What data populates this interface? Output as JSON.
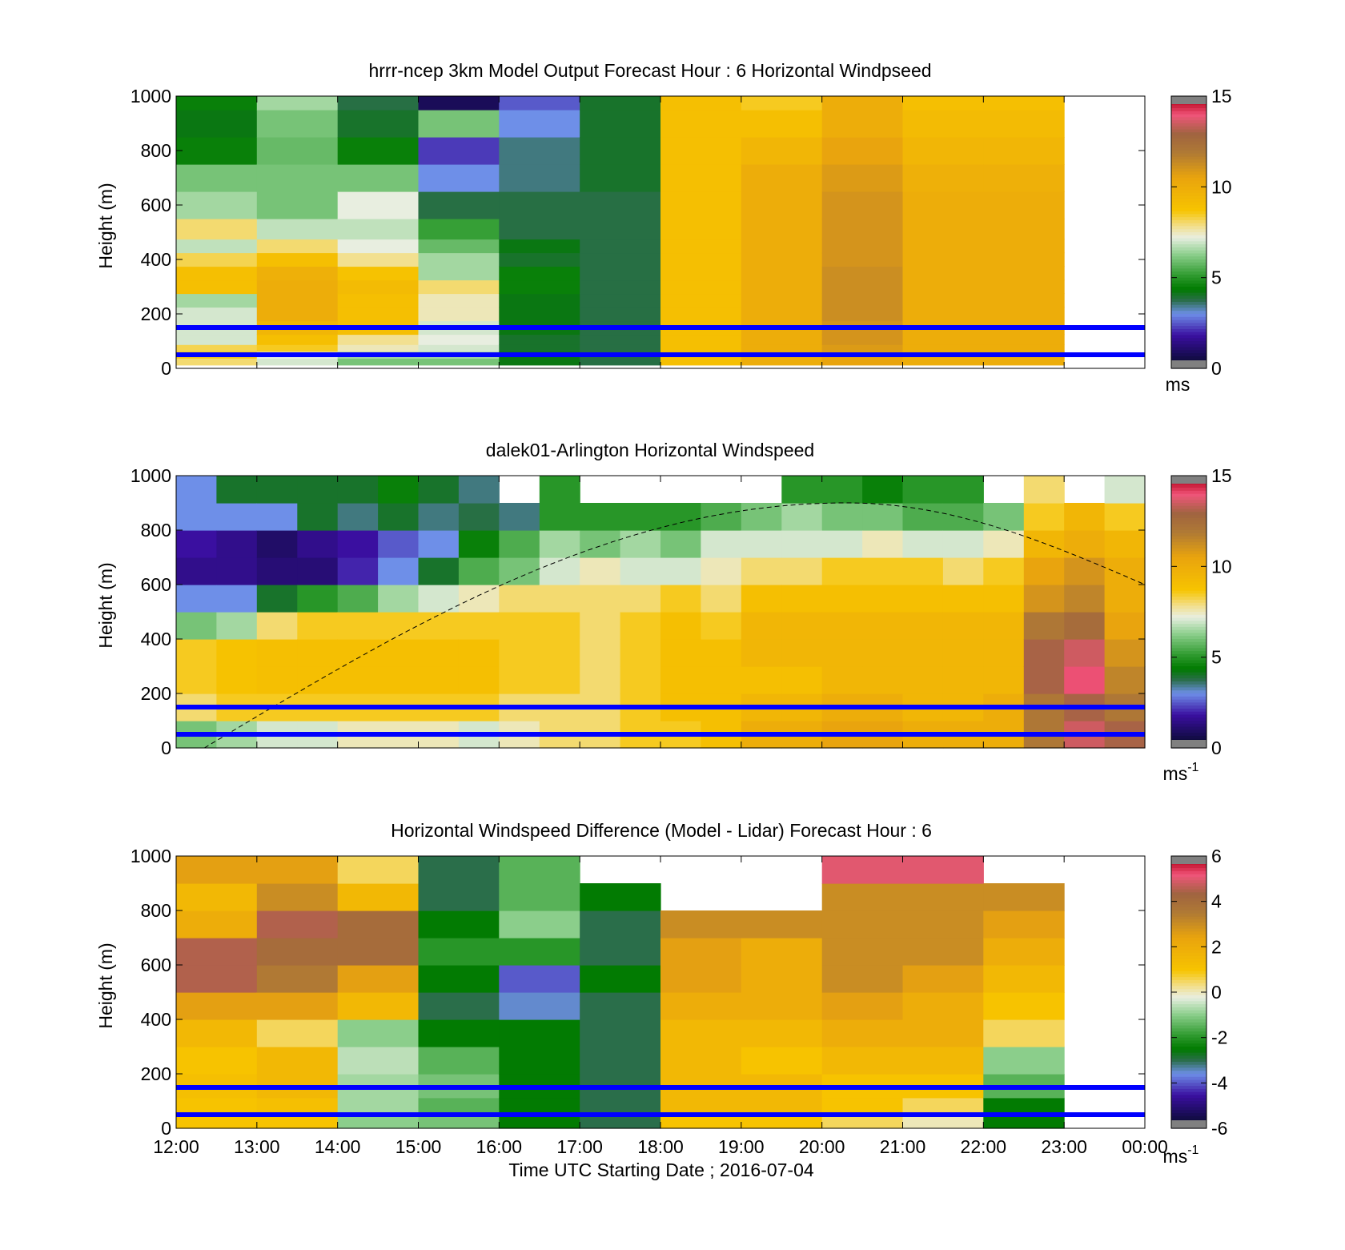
{
  "panels": [
    {
      "title": "hrrr-ncep 3km Model Output   Forecast Hour : 6 Horizontal Windpseed",
      "ylabel": "Height (m)",
      "yticks": [
        "0",
        "200",
        "400",
        "600",
        "800",
        "1000"
      ],
      "colorbar": {
        "ticks": [
          "0",
          "5",
          "10",
          "15"
        ],
        "unit": "ms",
        "unit_sup": ""
      }
    },
    {
      "title": "dalek01-Arlington  Horizontal Windspeed",
      "ylabel": "Height (m)",
      "yticks": [
        "0",
        "200",
        "400",
        "600",
        "800",
        "1000"
      ],
      "colorbar": {
        "ticks": [
          "0",
          "5",
          "10",
          "15"
        ],
        "unit": "ms",
        "unit_sup": "-1"
      }
    },
    {
      "title": "Horizontal Windspeed Difference (Model - Lidar) Forecast Hour : 6",
      "ylabel": "Height (m)",
      "yticks": [
        "0",
        "200",
        "400",
        "600",
        "800",
        "1000"
      ],
      "colorbar": {
        "ticks": [
          "-6",
          "-4",
          "-2",
          "0",
          "2",
          "4",
          "6"
        ],
        "unit": "ms",
        "unit_sup": "-1"
      }
    }
  ],
  "xticks": [
    "12:00",
    "13:00",
    "14:00",
    "15:00",
    "16:00",
    "17:00",
    "18:00",
    "19:00",
    "20:00",
    "21:00",
    "22:00",
    "23:00",
    "00:00"
  ],
  "xlabel": "Time UTC  Starting Date ; 2016-07-04",
  "colors": {
    "reference_line": "#0000ff",
    "frame": "#000000"
  },
  "chart_data": [
    {
      "type": "heatmap",
      "title": "hrrr-ncep 3km Model Output   Forecast Hour : 6 Horizontal Windpseed",
      "ylabel": "Height (m)",
      "x_range": [
        "12:00",
        "00:00"
      ],
      "ylim": [
        0,
        1000
      ],
      "clim": [
        0,
        15
      ],
      "colorbar_unit": "ms",
      "reference_lines_m": [
        150,
        50
      ],
      "time_hours": [
        12,
        13,
        14,
        15,
        16,
        17,
        18,
        19,
        20,
        21,
        22
      ],
      "heights_m": [
        25,
        50,
        75,
        100,
        150,
        200,
        250,
        300,
        350,
        400,
        450,
        500,
        600,
        700,
        800,
        900,
        1000
      ],
      "values": [
        [
          8.0,
          8.5,
          8.2,
          7.0,
          7.0,
          7.0,
          6.5,
          9.0,
          9.0,
          8.2,
          6.8,
          8.0,
          6.5,
          6.0,
          4.5,
          4.2,
          4.5
        ],
        [
          7.0,
          7.2,
          8.5,
          9.0,
          9.5,
          10.0,
          10.0,
          10.0,
          9.8,
          9.0,
          8.0,
          6.8,
          6.0,
          6.0,
          5.8,
          6.0,
          6.5
        ],
        [
          6.0,
          6.5,
          7.5,
          7.8,
          9.0,
          9.0,
          9.0,
          9.2,
          8.8,
          7.8,
          7.2,
          6.8,
          7.2,
          6.0,
          4.5,
          4.0,
          3.8
        ],
        [
          6.0,
          6.5,
          7.0,
          7.2,
          7.0,
          7.5,
          7.5,
          8.0,
          6.5,
          6.5,
          5.8,
          5.2,
          3.8,
          3.0,
          2.2,
          6.0,
          0.8
        ],
        [
          4.2,
          4.2,
          4.0,
          4.0,
          4.2,
          4.2,
          4.2,
          4.5,
          4.5,
          4.0,
          4.2,
          3.8,
          3.8,
          3.5,
          3.5,
          3.0,
          2.5
        ],
        [
          3.8,
          3.8,
          3.8,
          3.8,
          3.8,
          3.8,
          3.8,
          3.8,
          3.8,
          3.8,
          3.8,
          3.8,
          3.8,
          4.0,
          4.0,
          4.0,
          4.0
        ],
        [
          9.0,
          9.0,
          9.0,
          9.0,
          9.0,
          9.0,
          9.0,
          9.0,
          9.0,
          9.0,
          9.0,
          9.0,
          9.0,
          9.0,
          9.0,
          9.0,
          9.0
        ],
        [
          10.0,
          10.0,
          10.0,
          10.0,
          10.0,
          10.0,
          10.0,
          10.0,
          10.0,
          10.0,
          10.0,
          10.0,
          10.0,
          10.0,
          9.5,
          9.0,
          8.5
        ],
        [
          10.5,
          10.5,
          10.8,
          11.0,
          11.0,
          11.2,
          11.2,
          11.2,
          11.2,
          11.0,
          11.0,
          11.0,
          11.0,
          10.8,
          10.5,
          10.0,
          10.0
        ],
        [
          10.0,
          10.0,
          10.0,
          10.0,
          10.0,
          10.0,
          10.0,
          10.0,
          10.0,
          10.0,
          10.0,
          10.0,
          10.0,
          9.8,
          9.5,
          9.2,
          9.0
        ],
        [
          10.0,
          10.0,
          10.0,
          10.0,
          10.0,
          10.0,
          10.0,
          10.0,
          10.0,
          10.0,
          10.0,
          10.0,
          10.0,
          9.8,
          9.5,
          9.2,
          9.0
        ]
      ]
    },
    {
      "type": "heatmap",
      "title": "dalek01-Arlington  Horizontal Windspeed",
      "ylabel": "Height (m)",
      "x_range": [
        "12:00",
        "00:00"
      ],
      "ylim": [
        0,
        1000
      ],
      "clim": [
        0,
        15
      ],
      "colorbar_unit": "ms-1",
      "reference_lines_m": [
        150,
        50
      ],
      "dashed_curve": {
        "start_hour": 12.35,
        "peak_hour": 20.3,
        "peak_m": 900,
        "end_hour": 24.0,
        "end_m": 600
      },
      "time_hours": [
        12.0,
        12.5,
        13.0,
        13.5,
        14.0,
        14.5,
        15.0,
        15.5,
        16.0,
        16.5,
        17.0,
        17.5,
        18.0,
        18.5,
        19.0,
        19.5,
        20.0,
        20.5,
        21.0,
        21.5,
        22.0,
        22.5,
        23.0,
        23.5
      ],
      "heights_m": [
        50,
        150,
        250,
        350,
        450,
        550,
        650,
        750,
        850,
        950
      ],
      "values": [
        [
          6.0,
          8.0,
          8.5,
          8.5,
          6.0,
          3.0,
          1.5,
          1.8,
          3.0,
          3.0
        ],
        [
          6.5,
          8.5,
          8.8,
          8.8,
          6.5,
          3.0,
          1.5,
          1.5,
          3.0,
          4.0
        ],
        [
          7.0,
          8.5,
          9.0,
          9.0,
          8.0,
          4.0,
          1.2,
          1.0,
          3.0,
          4.0
        ],
        [
          7.0,
          8.5,
          9.0,
          9.0,
          8.5,
          5.0,
          1.2,
          1.5,
          4.0,
          4.0
        ],
        [
          7.5,
          8.5,
          9.0,
          9.0,
          8.5,
          5.5,
          2.0,
          1.8,
          3.5,
          4.0
        ],
        [
          7.5,
          8.5,
          9.0,
          9.0,
          8.5,
          6.5,
          3.0,
          2.5,
          4.0,
          4.5
        ],
        [
          7.5,
          8.5,
          9.0,
          9.0,
          8.5,
          7.0,
          4.0,
          3.0,
          3.5,
          4.0
        ],
        [
          7.0,
          8.5,
          9.0,
          9.0,
          8.5,
          7.5,
          5.5,
          4.5,
          3.8,
          3.5
        ],
        [
          7.5,
          8.0,
          8.5,
          8.5,
          8.5,
          8.0,
          6.0,
          5.5,
          3.5,
          null
        ],
        [
          8.0,
          8.0,
          8.5,
          8.5,
          8.5,
          8.0,
          7.0,
          6.5,
          5.0,
          5.0
        ],
        [
          8.0,
          8.0,
          8.0,
          8.0,
          8.0,
          8.0,
          7.5,
          6.0,
          5.0,
          null
        ],
        [
          8.5,
          8.5,
          8.5,
          8.5,
          8.5,
          8.0,
          7.0,
          6.5,
          5.0,
          null
        ],
        [
          8.5,
          9.0,
          9.0,
          9.0,
          9.0,
          8.5,
          7.0,
          6.0,
          5.0,
          null
        ],
        [
          9.0,
          9.0,
          9.0,
          9.0,
          8.5,
          8.0,
          7.5,
          7.0,
          5.5,
          null
        ],
        [
          10.0,
          9.5,
          9.0,
          9.5,
          9.5,
          9.0,
          8.0,
          7.0,
          6.0,
          null
        ],
        [
          10.0,
          9.5,
          9.0,
          9.5,
          9.5,
          9.0,
          8.0,
          7.0,
          6.5,
          5.0
        ],
        [
          10.5,
          10.0,
          9.5,
          9.5,
          9.5,
          9.0,
          8.5,
          7.0,
          6.0,
          5.0
        ],
        [
          10.5,
          10.0,
          9.5,
          9.5,
          9.5,
          9.0,
          8.5,
          7.5,
          6.0,
          4.5
        ],
        [
          10.0,
          9.5,
          9.5,
          9.5,
          9.5,
          9.0,
          8.5,
          7.0,
          5.5,
          5.0
        ],
        [
          10.0,
          9.5,
          9.5,
          9.5,
          9.5,
          9.0,
          8.0,
          7.0,
          5.5,
          5.0
        ],
        [
          10.0,
          10.0,
          9.5,
          9.5,
          9.5,
          9.0,
          8.5,
          7.5,
          6.0,
          null
        ],
        [
          12.0,
          12.0,
          13.0,
          13.0,
          12.0,
          11.0,
          10.5,
          9.5,
          8.5,
          8.0
        ],
        [
          13.5,
          13.0,
          14.0,
          13.5,
          12.5,
          11.5,
          11.0,
          10.0,
          9.5,
          null
        ],
        [
          13.0,
          12.0,
          11.5,
          11.0,
          10.5,
          10.0,
          10.0,
          9.5,
          8.5,
          7.0
        ]
      ]
    },
    {
      "type": "heatmap",
      "title": "Horizontal Windspeed Difference (Model - Lidar) Forecast Hour : 6",
      "ylabel": "Height (m)",
      "xlabel": "Time UTC  Starting Date ; 2016-07-04",
      "x_range": [
        "12:00",
        "00:00"
      ],
      "ylim": [
        0,
        1000
      ],
      "clim": [
        -6,
        6
      ],
      "colorbar_unit": "ms-1",
      "reference_lines_m": [
        150,
        50
      ],
      "time_hours": [
        12,
        13,
        14,
        15,
        16,
        17,
        18,
        19,
        20,
        21,
        22
      ],
      "heights_m": [
        25,
        75,
        150,
        250,
        350,
        450,
        550,
        650,
        750,
        850,
        950
      ],
      "values": [
        [
          1.0,
          1.0,
          1.2,
          1.0,
          1.5,
          2.5,
          4.5,
          4.5,
          2.0,
          1.5,
          2.5
        ],
        [
          1.0,
          1.2,
          1.5,
          1.5,
          0.5,
          2.5,
          3.5,
          4.0,
          4.5,
          3.0,
          2.5
        ],
        [
          -1.0,
          -0.8,
          -0.8,
          -0.6,
          -1.0,
          1.5,
          2.5,
          4.0,
          4.0,
          1.5,
          0.5
        ],
        [
          -1.2,
          -1.5,
          -1.2,
          -1.5,
          -2.5,
          -3.0,
          -2.5,
          -2.0,
          -2.5,
          -3.0,
          -3.0
        ],
        [
          -2.5,
          -2.5,
          -2.5,
          -2.5,
          -2.5,
          -3.5,
          -4.0,
          -2.0,
          -1.0,
          -1.5,
          -1.5
        ],
        [
          -3.0,
          -3.0,
          -3.0,
          -3.0,
          -3.0,
          -3.0,
          -2.5,
          -3.0,
          -3.0,
          -2.5,
          null
        ],
        [
          1.0,
          1.5,
          1.5,
          1.5,
          1.5,
          2.0,
          2.5,
          2.5,
          3.0,
          null,
          null
        ],
        [
          1.0,
          1.5,
          1.5,
          1.0,
          1.5,
          2.0,
          2.0,
          2.0,
          3.0,
          null,
          null
        ],
        [
          0.5,
          1.0,
          1.0,
          1.5,
          2.0,
          2.5,
          3.0,
          3.0,
          3.0,
          3.0,
          5.0
        ],
        [
          0.0,
          0.5,
          1.0,
          1.5,
          2.0,
          2.0,
          2.5,
          3.0,
          3.0,
          3.0,
          5.0
        ],
        [
          -2.5,
          -2.5,
          -1.5,
          -1.0,
          0.5,
          1.0,
          1.5,
          2.0,
          2.5,
          3.0,
          null
        ]
      ]
    }
  ]
}
